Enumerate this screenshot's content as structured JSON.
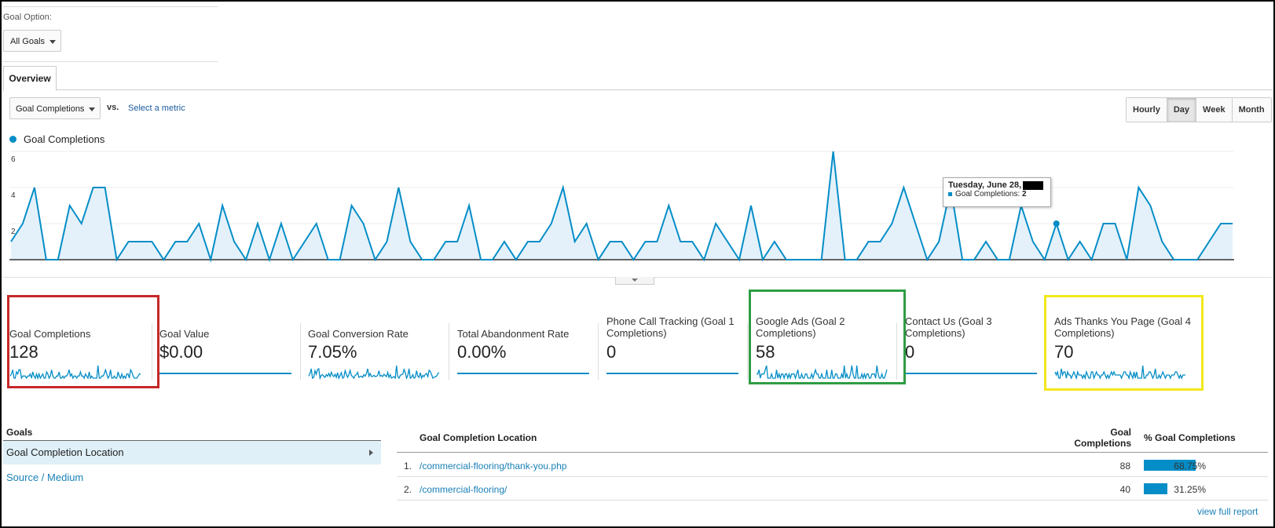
{
  "goal_option": {
    "label": "Goal Option:",
    "value": "All Goals"
  },
  "tabs": {
    "overview": "Overview"
  },
  "chart_controls": {
    "metric": "Goal Completions",
    "vs": "vs.",
    "select_metric": "Select a metric",
    "granularity": [
      "Hourly",
      "Day",
      "Week",
      "Month"
    ],
    "active_granularity": "Day"
  },
  "chart_data": {
    "type": "area",
    "series": [
      {
        "name": "Goal Completions",
        "values": [
          1,
          2,
          4,
          0,
          0,
          3,
          2,
          4,
          4,
          0,
          1,
          1,
          1,
          0,
          1,
          1,
          2,
          0,
          3,
          1,
          0,
          2,
          0,
          2,
          0,
          1,
          2,
          0,
          0,
          3,
          2,
          0,
          1,
          4,
          1,
          0,
          0,
          1,
          1,
          3,
          0,
          0,
          1,
          0,
          1,
          1,
          2,
          4,
          1,
          2,
          0,
          1,
          1,
          0,
          1,
          1,
          3,
          1,
          1,
          0,
          2,
          1,
          0,
          3,
          0,
          1,
          0,
          0,
          0,
          0,
          6,
          0,
          0,
          1,
          1,
          2,
          4,
          2,
          0,
          1,
          4,
          0,
          0,
          1,
          0,
          0,
          3,
          1,
          0,
          2,
          0,
          1,
          0,
          2,
          2,
          0,
          4,
          3,
          1,
          0,
          0,
          0,
          1,
          2,
          2
        ]
      }
    ],
    "yticks": [
      "2",
      "4",
      "6"
    ],
    "ylim": [
      0,
      6
    ],
    "color": "#058dc7",
    "highlight_index": 89
  },
  "tooltip": {
    "date": "Tuesday, June 28,",
    "metric": "Goal Completions:",
    "value": "2"
  },
  "scorecards": [
    {
      "label": "Goal Completions",
      "value": "128"
    },
    {
      "label": "Goal Value",
      "value": "$0.00"
    },
    {
      "label": "Goal Conversion Rate",
      "value": "7.05%"
    },
    {
      "label": "Total Abandonment Rate",
      "value": "0.00%"
    },
    {
      "label": "Phone Call Tracking (Goal 1 Completions)",
      "value": "0"
    },
    {
      "label": "Google Ads (Goal 2 Completions)",
      "value": "58"
    },
    {
      "label": "Contact Us (Goal 3 Completions)",
      "value": "0"
    },
    {
      "label": "Ads Thanks You Page (Goal 4 Completions)",
      "value": "70"
    }
  ],
  "goals_panel": {
    "heading": "Goals",
    "active_item": "Goal Completion Location",
    "link_item": "Source / Medium"
  },
  "table": {
    "col_location": "Goal Completion Location",
    "col_completions": "Goal Completions",
    "col_pct": "% Goal Completions",
    "rows": [
      {
        "num": "1.",
        "location": "/commercial-flooring/thank-you.php",
        "completions": "88",
        "pct": "68.75%",
        "pct_value": 68.75
      },
      {
        "num": "2.",
        "location": "/commercial-flooring/",
        "completions": "40",
        "pct": "31.25%",
        "pct_value": 31.25
      }
    ],
    "view_full": "view full report"
  }
}
